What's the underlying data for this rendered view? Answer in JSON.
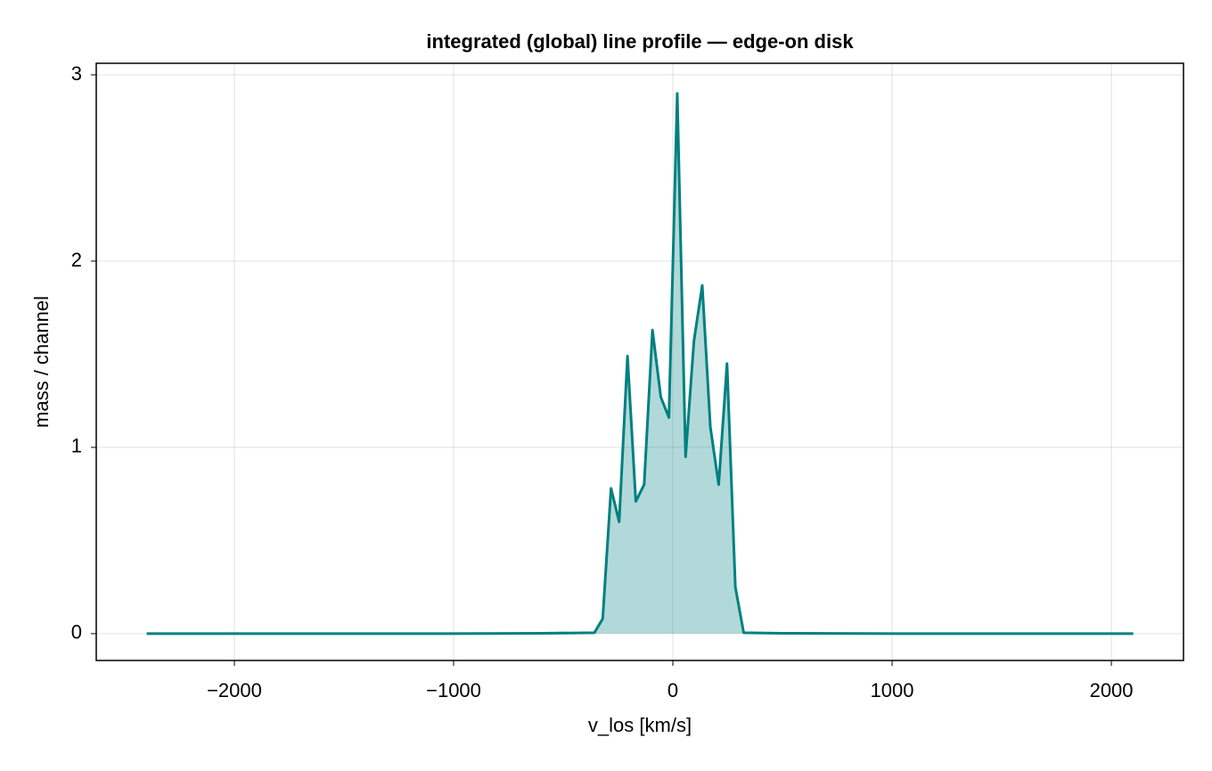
{
  "chart_data": {
    "type": "line",
    "title": "integrated (global) line profile — edge-on disk",
    "x_label": "v_los [km/s]",
    "y_label": "mass / channel",
    "x": [
      -2400,
      -1000,
      -600,
      -358,
      -320,
      -282,
      -245,
      -207,
      -169,
      -131,
      -93,
      -55,
      -18,
      20,
      58,
      96,
      134,
      171,
      209,
      247,
      285,
      323,
      500,
      1000,
      2100
    ],
    "series": [
      {
        "name": "profile",
        "color": "#008080",
        "fill": "rgba(0,128,128,0.3)",
        "values": [
          0,
          0,
          0.002,
          0.005,
          0.08,
          0.78,
          0.6,
          1.49,
          0.71,
          0.8,
          1.63,
          1.27,
          1.16,
          2.9,
          0.95,
          1.57,
          1.87,
          1.11,
          0.8,
          1.45,
          0.25,
          0.005,
          0.002,
          0,
          0
        ]
      }
    ],
    "xlim": [
      -2630,
      2329
    ],
    "ylim": [
      -0.144,
      3.062
    ],
    "xticks": [
      {
        "value": -2000,
        "label": "−2000"
      },
      {
        "value": -1000,
        "label": "−1000"
      },
      0,
      1000,
      2000
    ],
    "yticks": [
      0,
      1,
      2,
      3
    ],
    "grid": true
  }
}
